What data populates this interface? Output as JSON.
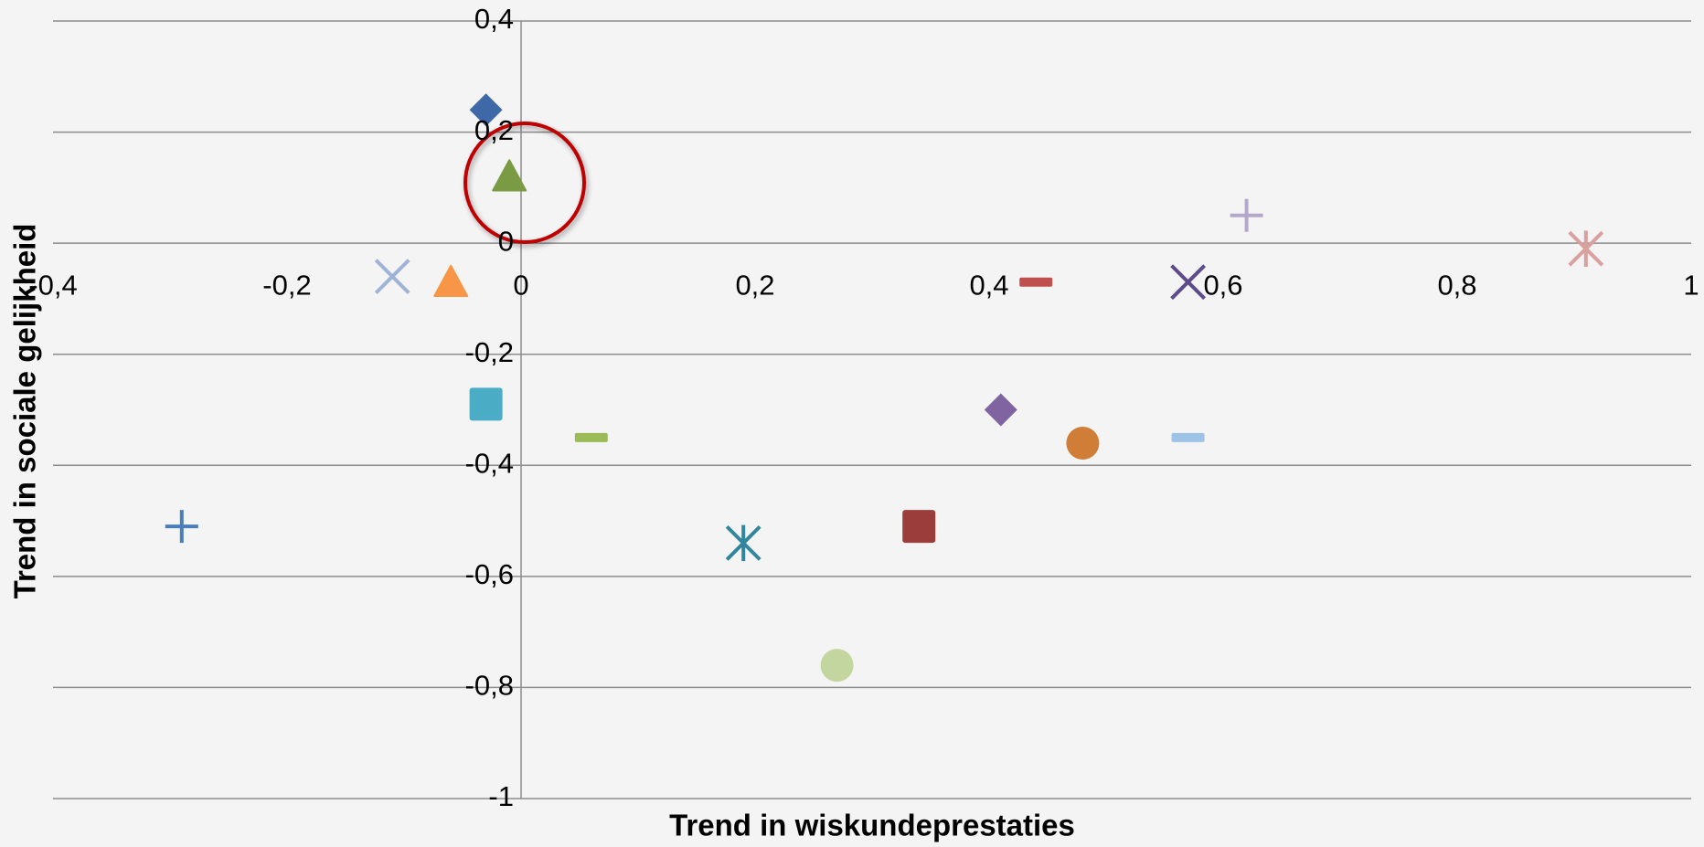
{
  "chart_data": {
    "type": "scatter",
    "x_label": "Trend in wiskundeprestaties",
    "y_label": "Trend in sociale gelijkheid",
    "xlim": [
      -0.4,
      1
    ],
    "ylim": [
      -1,
      0.4
    ],
    "xticks": [
      {
        "value": -0.4,
        "label": "-0,4"
      },
      {
        "value": -0.2,
        "label": "-0,2"
      },
      0,
      {
        "value": 0.2,
        "label": "0,2"
      },
      {
        "value": 0.4,
        "label": "0,4"
      },
      {
        "value": 0.6,
        "label": "0,6"
      },
      {
        "value": 0.8,
        "label": "0,8"
      },
      1
    ],
    "yticks": [
      {
        "value": -1,
        "label": "-1"
      },
      {
        "value": -0.8,
        "label": "-0,8"
      },
      {
        "value": -0.6,
        "label": "-0,6"
      },
      {
        "value": -0.4,
        "label": "-0,4"
      },
      {
        "value": -0.2,
        "label": "-0,2"
      },
      0,
      {
        "value": 0.2,
        "label": "0,2"
      },
      {
        "value": 0.4,
        "label": "0,4"
      }
    ],
    "grid": true,
    "series": [
      {
        "color": "#3f68a8",
        "marker": "diamond",
        "x": [
          -0.03
        ],
        "values": [
          0.24
        ]
      },
      {
        "color": "#7a9a44",
        "marker": "triangle",
        "x": [
          -0.01
        ],
        "values": [
          0.12
        ]
      },
      {
        "color": "#b3a8cc",
        "marker": "plus",
        "x": [
          0.62
        ],
        "values": [
          0.05
        ]
      },
      {
        "color": "#d9a09e",
        "marker": "asterisk",
        "x": [
          0.91
        ],
        "values": [
          -0.01
        ]
      },
      {
        "color": "#9fb3d6",
        "marker": "x",
        "x": [
          -0.11
        ],
        "values": [
          -0.06
        ]
      },
      {
        "color": "#f79646",
        "marker": "triangle",
        "x": [
          -0.06
        ],
        "values": [
          -0.07
        ]
      },
      {
        "color": "#c0504d",
        "marker": "dash",
        "x": [
          0.44
        ],
        "values": [
          -0.07
        ]
      },
      {
        "color": "#5f4b8b",
        "marker": "x",
        "x": [
          0.57
        ],
        "values": [
          -0.07
        ]
      },
      {
        "color": "#4bacc6",
        "marker": "square",
        "x": [
          -0.03
        ],
        "values": [
          -0.29
        ]
      },
      {
        "color": "#9bbb59",
        "marker": "dash",
        "x": [
          0.06
        ],
        "values": [
          -0.35
        ]
      },
      {
        "color": "#8064a2",
        "marker": "diamond",
        "x": [
          0.41
        ],
        "values": [
          -0.3
        ]
      },
      {
        "color": "#d07d37",
        "marker": "circle",
        "x": [
          0.48
        ],
        "values": [
          -0.36
        ]
      },
      {
        "color": "#9dc3e6",
        "marker": "dash",
        "x": [
          0.57
        ],
        "values": [
          -0.35
        ]
      },
      {
        "color": "#4a7ebb",
        "marker": "plus",
        "x": [
          -0.29
        ],
        "values": [
          -0.51
        ]
      },
      {
        "color": "#31859c",
        "marker": "asterisk",
        "x": [
          0.19
        ],
        "values": [
          -0.54
        ]
      },
      {
        "color": "#9b3d3b",
        "marker": "square",
        "x": [
          0.34
        ],
        "values": [
          -0.51
        ]
      },
      {
        "color": "#c3d6a0",
        "marker": "circle",
        "x": [
          0.27
        ],
        "values": [
          -0.76
        ]
      }
    ]
  }
}
